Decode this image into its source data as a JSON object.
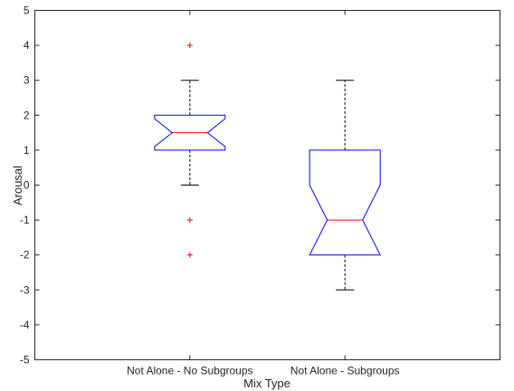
{
  "chart_data": {
    "type": "boxplot",
    "xlabel": "Mix Type",
    "ylabel": "Arousal",
    "ylim": [
      -5,
      5
    ],
    "yticks": [
      -5,
      -4,
      -3,
      -2,
      -1,
      0,
      1,
      2,
      3,
      4,
      5
    ],
    "categories": [
      "Not Alone - No Subgroups",
      "Not Alone - Subgroups"
    ],
    "notched": true,
    "grid": false,
    "boxes": [
      {
        "category": "Not Alone - No Subgroups",
        "whisker_low": 0,
        "q1": 1,
        "median": 1.5,
        "q3": 2,
        "whisker_high": 3,
        "notch_low": 1.1,
        "notch_high": 1.9,
        "outliers": [
          4,
          -1,
          -2
        ]
      },
      {
        "category": "Not Alone - Subgroups",
        "whisker_low": -3,
        "q1": -2,
        "median": -1,
        "q3": 1,
        "whisker_high": 3,
        "notch_low": -2,
        "notch_high": 0,
        "outliers": []
      }
    ],
    "colors": {
      "box": "#0000ff",
      "median": "#ff0000",
      "whisker": "#000000",
      "outlier": "#ff0000",
      "axis": "#262626"
    }
  }
}
